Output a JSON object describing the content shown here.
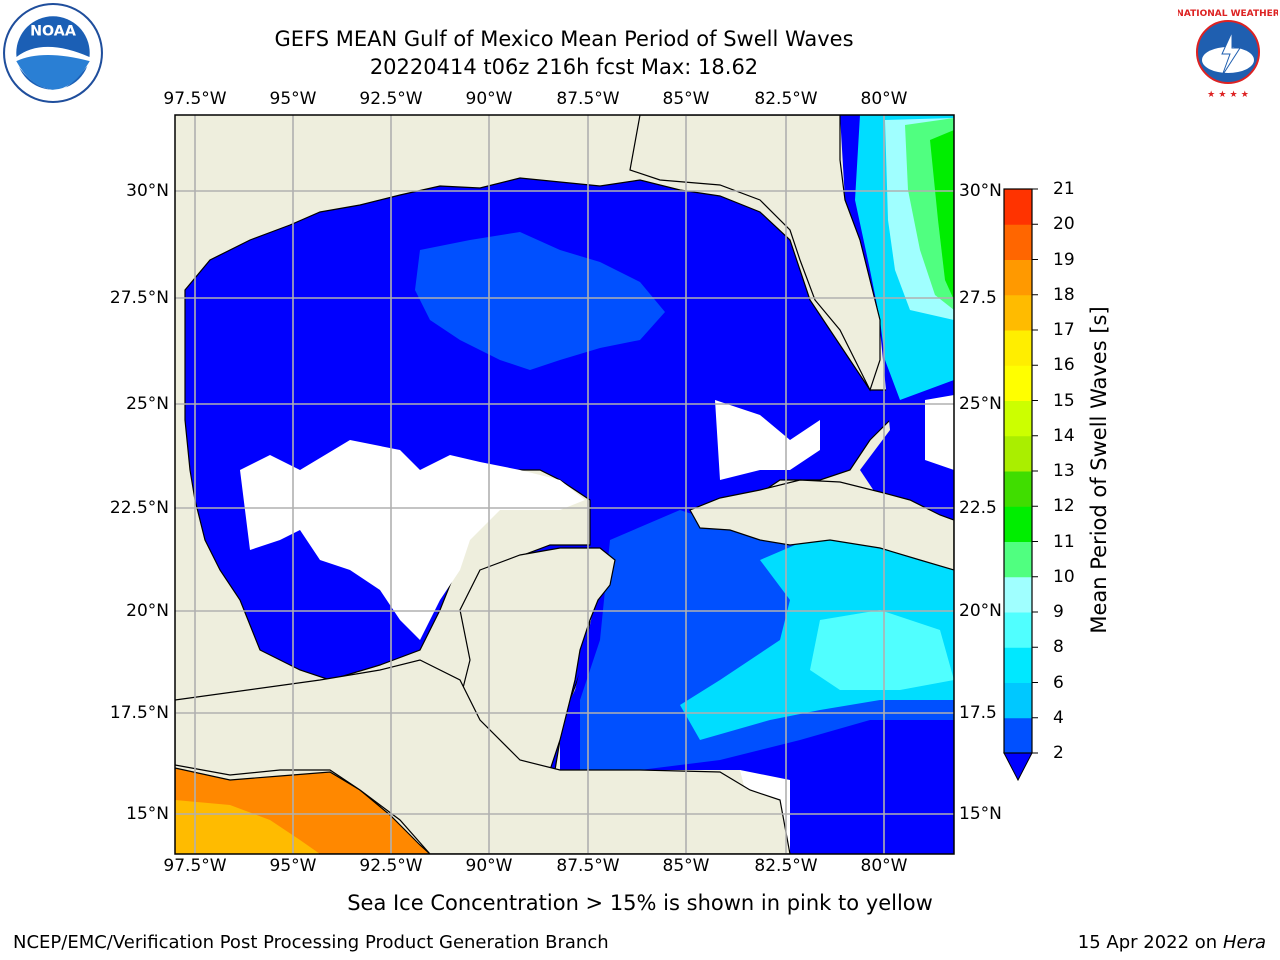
{
  "header": {
    "title_line1": "GEFS MEAN Gulf of Mexico Mean Period of Swell Waves",
    "title_line2": "20220414 t06z 216h fcst   Max: 18.62"
  },
  "logos": {
    "left": "NOAA",
    "right": "NATIONAL WEATHER SERVICE"
  },
  "map": {
    "lon_labels": [
      "97.5°W",
      "95°W",
      "92.5°W",
      "90°W",
      "87.5°W",
      "85°W",
      "82.5°W",
      "80°W"
    ],
    "lat_labels_left": [
      "30°N",
      "27.5°N",
      "25°N",
      "22.5°N",
      "20°N",
      "17.5°N",
      "15°N"
    ],
    "lat_labels_right": [
      "30°N",
      "27.5",
      "25°N",
      "22.5",
      "20°N",
      "17.5",
      "15°N"
    ],
    "colors": {
      "land": "#eeeedd",
      "no_data": "#ffffff",
      "coast": "#000000",
      "grid": "#b0b0b0"
    }
  },
  "colorbar": {
    "label": "Mean Period of Swell Waves [s]",
    "ticks": [
      "2",
      "4",
      "6",
      "8",
      "9",
      "10",
      "11",
      "12",
      "13",
      "14",
      "15",
      "16",
      "17",
      "18",
      "19",
      "20",
      "21"
    ],
    "colors": [
      "#0050ff",
      "#00c8ff",
      "#00e8ff",
      "#50ffff",
      "#a0ffff",
      "#50ff80",
      "#00ee00",
      "#40dd00",
      "#aaee00",
      "#ccff00",
      "#ffff00",
      "#ffee00",
      "#ffbb00",
      "#ff9900",
      "#ff6600",
      "#ff3300",
      "#ff0000"
    ],
    "extend_color": "#0000ff"
  },
  "footer": {
    "note": "Sea Ice Concentration > 15% is shown in pink to yellow",
    "credit": "NCEP/EMC/Verification Post Processing Product Generation Branch",
    "date": "15 Apr 2022 on ",
    "machine": "Hera"
  }
}
